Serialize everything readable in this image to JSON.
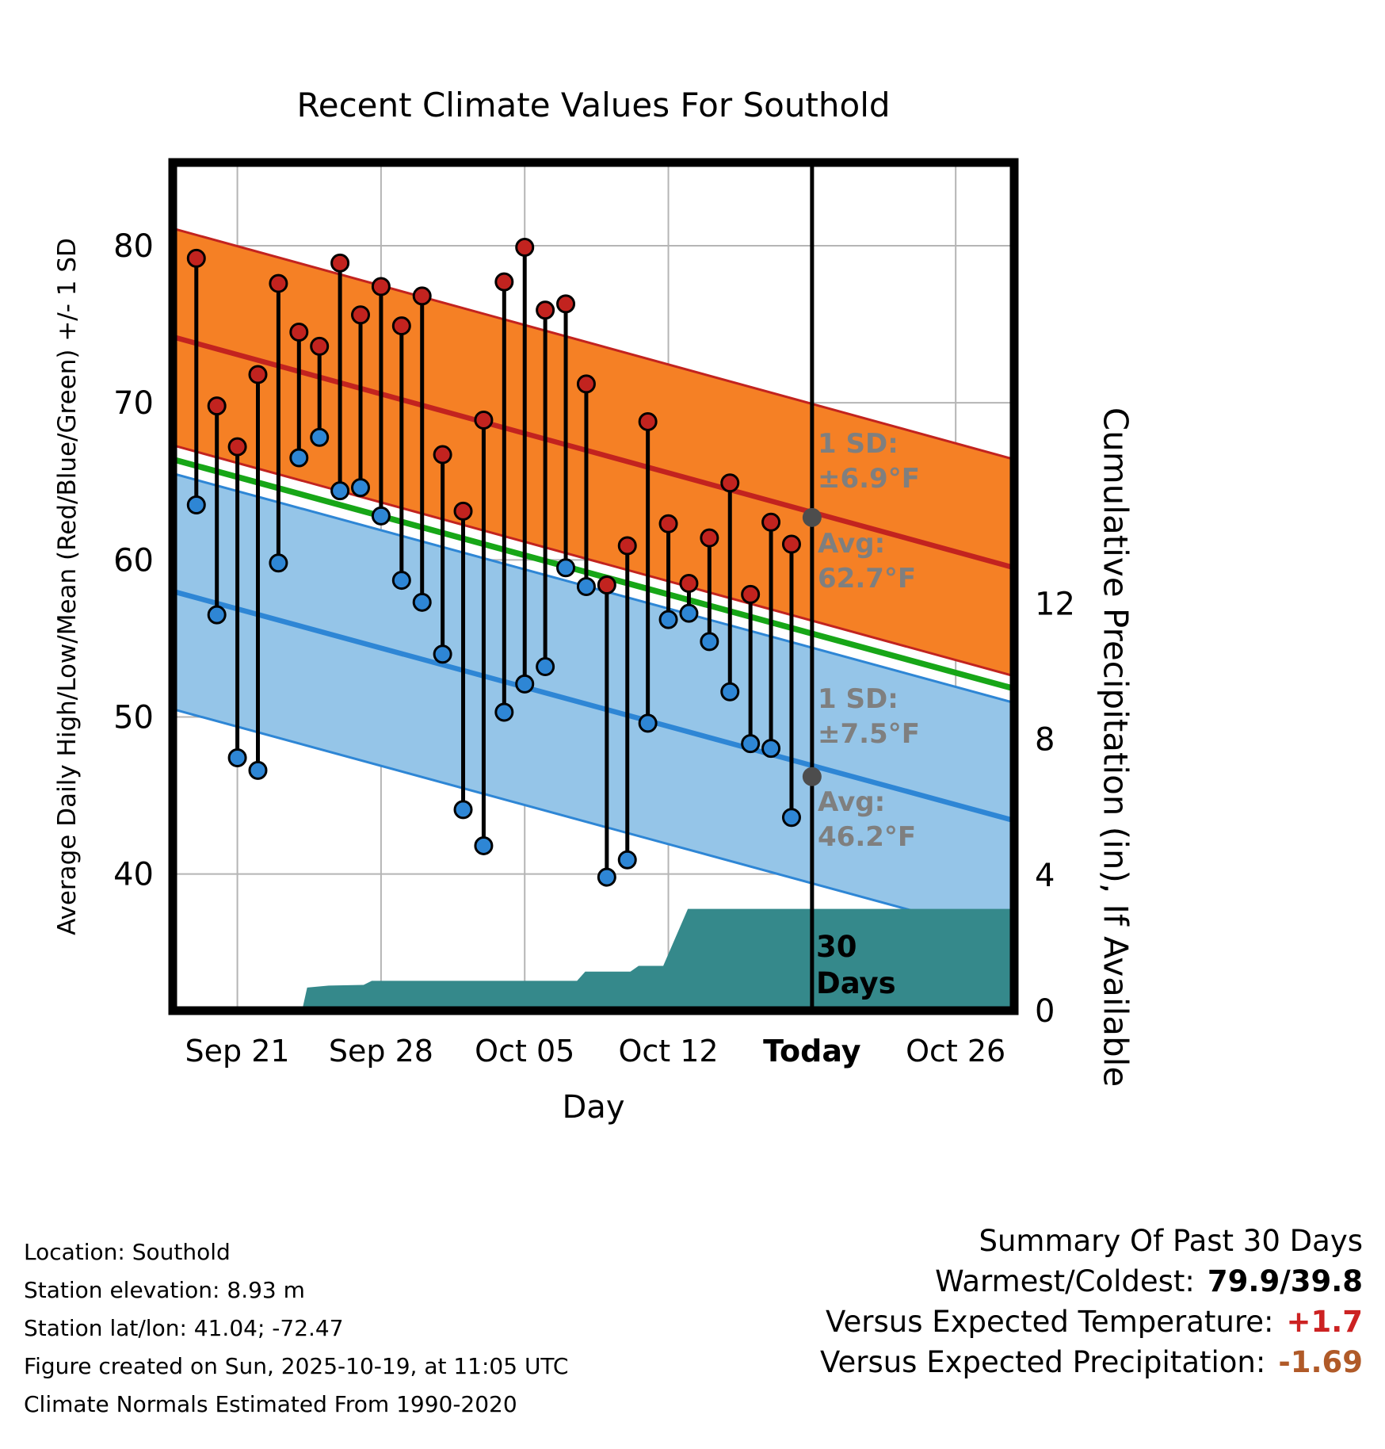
{
  "chart_data": {
    "type": "line",
    "title": "Recent Climate Values For Southold",
    "xlabel": "Day",
    "ylabel_left": "Average Daily High/Low/Mean (Red/Blue/Green) +/- 1 SD",
    "ylabel_right": "Cumulative Precipitation (in), If Available",
    "ylim_left": [
      31.3,
      85.3
    ],
    "ylim_right": [
      0,
      25
    ],
    "x_domain": [
      0,
      41
    ],
    "y_ticks_left": [
      40,
      50,
      60,
      70,
      80
    ],
    "y_ticks_right": [
      0,
      4,
      8,
      12
    ],
    "x_ticks": [
      {
        "label": "Sep 21",
        "x": 3.15,
        "bold": false
      },
      {
        "label": "Sep 28",
        "x": 10.15,
        "bold": false
      },
      {
        "label": "Oct 05",
        "x": 17.15,
        "bold": false
      },
      {
        "label": "Oct 12",
        "x": 24.15,
        "bold": false
      },
      {
        "label": "Today",
        "x": 31.15,
        "bold": true
      },
      {
        "label": "Oct 26",
        "x": 38.15,
        "bold": false
      }
    ],
    "today_x": 31.15,
    "normals": {
      "high": {
        "start": 74.2,
        "end": 59.5,
        "sd": 6.9,
        "avg_today": 62.7
      },
      "low": {
        "start": 58.0,
        "end": 43.4,
        "sd": 7.5,
        "avg_today": 46.2
      },
      "mean": {
        "start": 66.4,
        "end": 51.8
      }
    },
    "daily": [
      {
        "date": "Sep 19",
        "x": 1.15,
        "high": 79.2,
        "low": 63.5
      },
      {
        "date": "Sep 20",
        "x": 2.15,
        "high": 69.8,
        "low": 56.5
      },
      {
        "date": "Sep 21",
        "x": 3.15,
        "high": 67.2,
        "low": 47.4
      },
      {
        "date": "Sep 22",
        "x": 4.15,
        "high": 71.8,
        "low": 46.6
      },
      {
        "date": "Sep 23",
        "x": 5.15,
        "high": 77.6,
        "low": 59.8
      },
      {
        "date": "Sep 24",
        "x": 6.15,
        "high": 74.5,
        "low": 66.5
      },
      {
        "date": "Sep 25",
        "x": 7.15,
        "high": 73.6,
        "low": 67.8
      },
      {
        "date": "Sep 26",
        "x": 8.15,
        "high": 78.9,
        "low": 64.4
      },
      {
        "date": "Sep 27",
        "x": 9.15,
        "high": 75.6,
        "low": 64.6
      },
      {
        "date": "Sep 28",
        "x": 10.15,
        "high": 77.4,
        "low": 62.8
      },
      {
        "date": "Sep 29",
        "x": 11.15,
        "high": 74.9,
        "low": 58.7
      },
      {
        "date": "Sep 30",
        "x": 12.15,
        "high": 76.8,
        "low": 57.3
      },
      {
        "date": "Oct 01",
        "x": 13.15,
        "high": 66.7,
        "low": 54.0
      },
      {
        "date": "Oct 02",
        "x": 14.15,
        "high": 63.1,
        "low": 44.1
      },
      {
        "date": "Oct 03",
        "x": 15.15,
        "high": 68.9,
        "low": 41.8
      },
      {
        "date": "Oct 04",
        "x": 16.15,
        "high": 77.7,
        "low": 50.3
      },
      {
        "date": "Oct 05",
        "x": 17.15,
        "high": 79.9,
        "low": 52.1
      },
      {
        "date": "Oct 06",
        "x": 18.15,
        "high": 75.9,
        "low": 53.2
      },
      {
        "date": "Oct 07",
        "x": 19.15,
        "high": 76.3,
        "low": 59.5
      },
      {
        "date": "Oct 08",
        "x": 20.15,
        "high": 71.2,
        "low": 58.3
      },
      {
        "date": "Oct 09",
        "x": 21.15,
        "high": 58.4,
        "low": 39.8
      },
      {
        "date": "Oct 10",
        "x": 22.15,
        "high": 60.9,
        "low": 40.9
      },
      {
        "date": "Oct 11",
        "x": 23.15,
        "high": 68.8,
        "low": 49.6
      },
      {
        "date": "Oct 12",
        "x": 24.15,
        "high": 62.3,
        "low": 56.2
      },
      {
        "date": "Oct 13",
        "x": 25.15,
        "high": 58.5,
        "low": 56.6
      },
      {
        "date": "Oct 14",
        "x": 26.15,
        "high": 61.4,
        "low": 54.8
      },
      {
        "date": "Oct 15",
        "x": 27.15,
        "high": 64.9,
        "low": 51.6
      },
      {
        "date": "Oct 16",
        "x": 28.15,
        "high": 57.8,
        "low": 48.3
      },
      {
        "date": "Oct 17",
        "x": 29.15,
        "high": 62.4,
        "low": 48.0
      },
      {
        "date": "Oct 18",
        "x": 30.15,
        "high": 61.0,
        "low": 43.6
      }
    ],
    "precip_cumulative": [
      [
        0,
        0.0
      ],
      [
        6.3,
        0.0
      ],
      [
        6.55,
        0.68
      ],
      [
        7.6,
        0.74
      ],
      [
        9.3,
        0.76
      ],
      [
        9.7,
        0.88
      ],
      [
        19.7,
        0.88
      ],
      [
        20.1,
        1.15
      ],
      [
        22.3,
        1.15
      ],
      [
        22.7,
        1.32
      ],
      [
        23.9,
        1.32
      ],
      [
        25.1,
        3.0
      ],
      [
        41,
        3.0
      ]
    ],
    "colors": {
      "grid": "#b5b5b5",
      "high_band": "#F58025",
      "high_line": "#C2231F",
      "high_marker": "#C2231F",
      "low_band": "#95C5E8",
      "low_line": "#2E86D5",
      "low_marker": "#2E86D5",
      "mean_line": "#17A617",
      "precip": "#35898B",
      "avg_dot": "#4D4D4D",
      "anno_gray": "#7F7F7F",
      "stem": "#000000",
      "pos_temp": "#CC2222",
      "neg_precip": "#B05A28"
    }
  },
  "annotations": {
    "high_sd": [
      "1 SD:",
      "±6.9°F"
    ],
    "high_avg": [
      "Avg:",
      "62.7°F"
    ],
    "low_sd": [
      "1 SD:",
      "±7.5°F"
    ],
    "low_avg": [
      "Avg:",
      "46.2°F"
    ],
    "period": [
      "30",
      "Days"
    ]
  },
  "footer_left": {
    "location": "Location: Southold",
    "elevation": "Station elevation: 8.93 m",
    "latlon": "Station lat/lon: 41.04; -72.47",
    "created": "Figure created on Sun, 2025-10-19, at 11:05 UTC",
    "normals": "Climate Normals Estimated From 1990-2020"
  },
  "summary": {
    "title": "Summary Of Past 30 Days",
    "rows": [
      {
        "label": "Warmest/Coldest:",
        "value": "79.9/39.8"
      },
      {
        "label": "Versus Expected Temperature:",
        "value": "+1.7"
      },
      {
        "label": "Versus Expected Precipitation:",
        "value": "-1.69"
      }
    ]
  }
}
